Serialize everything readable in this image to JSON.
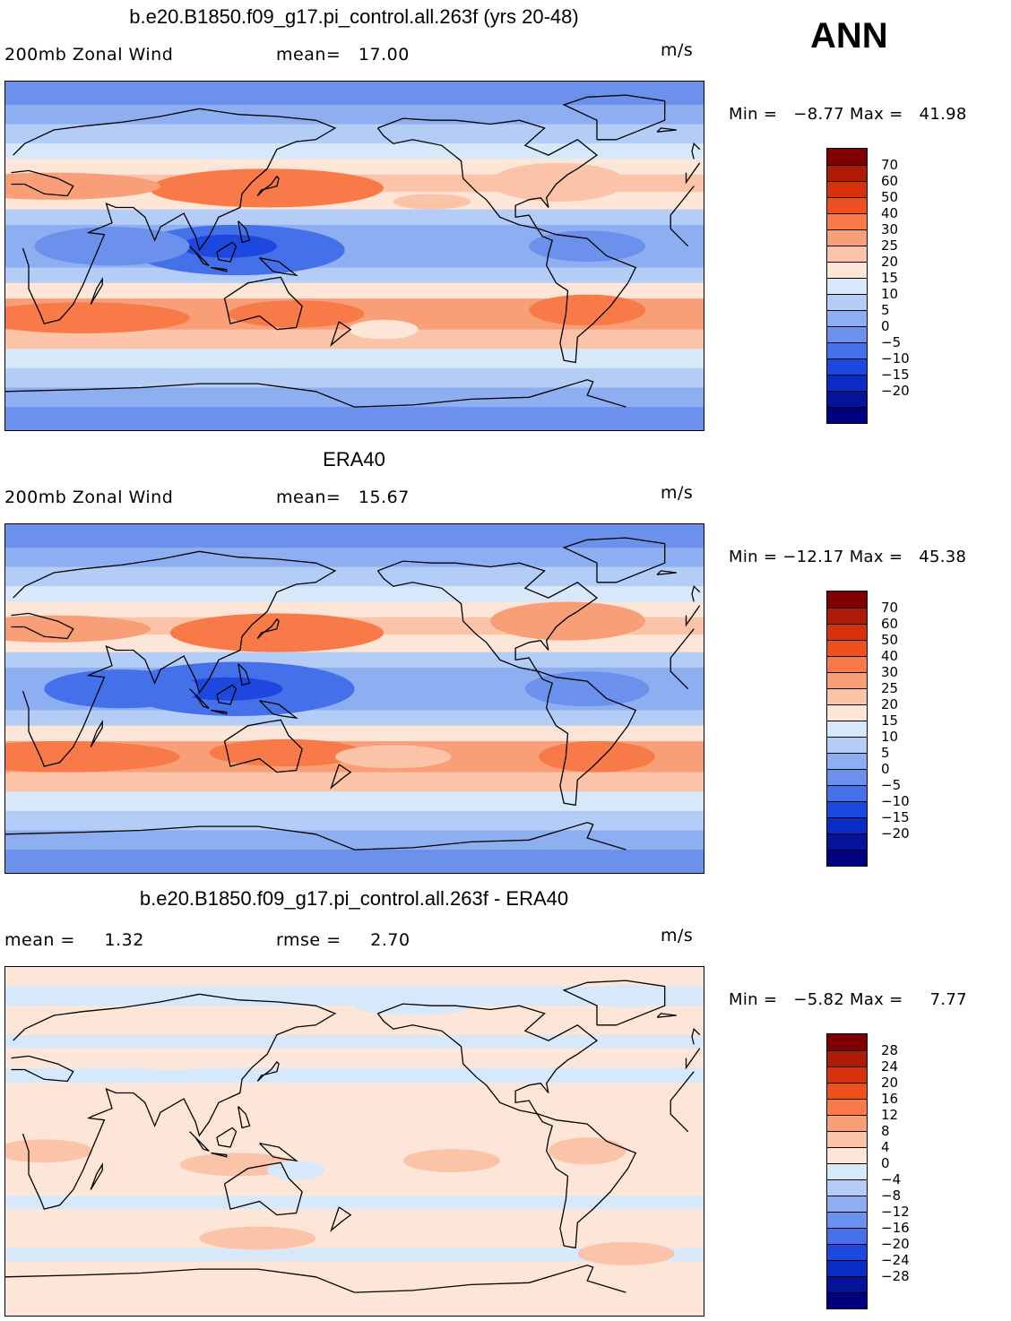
{
  "season": "ANN",
  "panels": [
    {
      "title": "b.e20.B1850.f09_g17.pi_control.all.263f (yrs 20-48)",
      "left_text": "200mb Zonal Wind",
      "center_text": "mean=   17.00",
      "units": "m/s",
      "minmax": "Min =   −8.77 Max =   41.98",
      "scale": "abs",
      "bands": [
        {
          "lat0": 90,
          "lat1": 78,
          "value": -4
        },
        {
          "lat0": 78,
          "lat1": 68,
          "value": 3
        },
        {
          "lat0": 68,
          "lat1": 58,
          "value": 8
        },
        {
          "lat0": 58,
          "lat1": 50,
          "value": 13
        },
        {
          "lat0": 50,
          "lat1": 42,
          "value": 18
        },
        {
          "lat0": 42,
          "lat1": 33,
          "value": 23
        },
        {
          "lat0": 33,
          "lat1": 24,
          "value": 17
        },
        {
          "lat0": 24,
          "lat1": 16,
          "value": 8
        },
        {
          "lat0": 16,
          "lat1": 4,
          "value": 2
        },
        {
          "lat0": 4,
          "lat1": -6,
          "value": 2
        },
        {
          "lat0": -6,
          "lat1": -14,
          "value": 9
        },
        {
          "lat0": -14,
          "lat1": -22,
          "value": 19
        },
        {
          "lat0": -22,
          "lat1": -38,
          "value": 27
        },
        {
          "lat0": -38,
          "lat1": -48,
          "value": 24
        },
        {
          "lat0": -48,
          "lat1": -58,
          "value": 14
        },
        {
          "lat0": -58,
          "lat1": -68,
          "value": 8
        },
        {
          "lat0": -68,
          "lat1": -78,
          "value": 3
        },
        {
          "lat0": -78,
          "lat1": -90,
          "value": -2
        }
      ],
      "blobs": [
        {
          "lon": 135,
          "lat": 35,
          "w": 60,
          "h": 10,
          "value": 37
        },
        {
          "lon": 110,
          "lat": 34,
          "w": 35,
          "h": 7,
          "value": 32
        },
        {
          "lon": 120,
          "lat": 3,
          "w": 55,
          "h": 13,
          "value": -7
        },
        {
          "lon": 115,
          "lat": 5,
          "w": 25,
          "h": 6,
          "value": -11
        },
        {
          "lon": 55,
          "lat": 5,
          "w": 40,
          "h": 10,
          "value": -5
        },
        {
          "lon": -60,
          "lat": 5,
          "w": 30,
          "h": 8,
          "value": -3
        },
        {
          "lon": 25,
          "lat": 36,
          "w": 55,
          "h": 7,
          "value": 26
        },
        {
          "lon": -75,
          "lat": 38,
          "w": 35,
          "h": 10,
          "value": 23
        },
        {
          "lon": -140,
          "lat": 28,
          "w": 20,
          "h": 4,
          "value": 24
        },
        {
          "lon": 150,
          "lat": -30,
          "w": 35,
          "h": 7,
          "value": 31
        },
        {
          "lon": 40,
          "lat": -32,
          "w": 55,
          "h": 8,
          "value": 32
        },
        {
          "lon": -60,
          "lat": -28,
          "w": 30,
          "h": 8,
          "value": 33
        },
        {
          "lon": -165,
          "lat": -38,
          "w": 18,
          "h": 5,
          "value": 17
        }
      ],
      "colorbar": {
        "colors": [
          "#7f0000",
          "#ae1b07",
          "#d7300c",
          "#f0501e",
          "#f77a48",
          "#f99f78",
          "#fbc3a8",
          "#fde6d8",
          "#d8e8fb",
          "#b4cdf6",
          "#8daff1",
          "#6b91ec",
          "#4470ea",
          "#1d48e0",
          "#0a2bc4",
          "#04139a",
          "#000080"
        ],
        "labels": [
          "70",
          "60",
          "50",
          "40",
          "30",
          "25",
          "20",
          "15",
          "10",
          "5",
          "0",
          "−5",
          "−10",
          "−15",
          "−20"
        ]
      }
    },
    {
      "title": "ERA40",
      "left_text": "200mb Zonal Wind",
      "center_text": "mean=   15.67",
      "units": "m/s",
      "minmax": "Min = −12.17 Max =   45.38",
      "scale": "abs",
      "bands": [
        {
          "lat0": 90,
          "lat1": 78,
          "value": -3
        },
        {
          "lat0": 78,
          "lat1": 68,
          "value": 2
        },
        {
          "lat0": 68,
          "lat1": 58,
          "value": 7
        },
        {
          "lat0": 58,
          "lat1": 50,
          "value": 12
        },
        {
          "lat0": 50,
          "lat1": 42,
          "value": 17
        },
        {
          "lat0": 42,
          "lat1": 33,
          "value": 22
        },
        {
          "lat0": 33,
          "lat1": 24,
          "value": 17
        },
        {
          "lat0": 24,
          "lat1": 16,
          "value": 7
        },
        {
          "lat0": 16,
          "lat1": 4,
          "value": 1
        },
        {
          "lat0": 4,
          "lat1": -6,
          "value": 1
        },
        {
          "lat0": -6,
          "lat1": -14,
          "value": 8
        },
        {
          "lat0": -14,
          "lat1": -22,
          "value": 18
        },
        {
          "lat0": -22,
          "lat1": -38,
          "value": 26
        },
        {
          "lat0": -38,
          "lat1": -48,
          "value": 22
        },
        {
          "lat0": -48,
          "lat1": -58,
          "value": 12
        },
        {
          "lat0": -58,
          "lat1": -68,
          "value": 7
        },
        {
          "lat0": -68,
          "lat1": -78,
          "value": 2
        },
        {
          "lat0": -78,
          "lat1": -90,
          "value": -2
        }
      ],
      "blobs": [
        {
          "lon": 140,
          "lat": 34,
          "w": 55,
          "h": 10,
          "value": 38
        },
        {
          "lon": 25,
          "lat": 36,
          "w": 50,
          "h": 7,
          "value": 27
        },
        {
          "lon": 120,
          "lat": 5,
          "w": 60,
          "h": 14,
          "value": -8
        },
        {
          "lon": 115,
          "lat": 5,
          "w": 28,
          "h": 6,
          "value": -12
        },
        {
          "lon": 60,
          "lat": 5,
          "w": 40,
          "h": 10,
          "value": -6
        },
        {
          "lon": -60,
          "lat": 5,
          "w": 32,
          "h": 9,
          "value": -5
        },
        {
          "lon": -70,
          "lat": 40,
          "w": 40,
          "h": 10,
          "value": 25
        },
        {
          "lon": 30,
          "lat": -30,
          "w": 60,
          "h": 8,
          "value": 31
        },
        {
          "lon": 145,
          "lat": -28,
          "w": 40,
          "h": 7,
          "value": 32
        },
        {
          "lon": -55,
          "lat": -30,
          "w": 30,
          "h": 8,
          "value": 31
        },
        {
          "lon": -160,
          "lat": -30,
          "w": 30,
          "h": 6,
          "value": 21
        }
      ],
      "colorbar": {
        "colors": [
          "#7f0000",
          "#ae1b07",
          "#d7300c",
          "#f0501e",
          "#f77a48",
          "#f99f78",
          "#fbc3a8",
          "#fde6d8",
          "#d8e8fb",
          "#b4cdf6",
          "#8daff1",
          "#6b91ec",
          "#4470ea",
          "#1d48e0",
          "#0a2bc4",
          "#04139a",
          "#000080"
        ],
        "labels": [
          "70",
          "60",
          "50",
          "40",
          "30",
          "25",
          "20",
          "15",
          "10",
          "5",
          "0",
          "−5",
          "−10",
          "−15",
          "−20"
        ]
      }
    },
    {
      "title": "b.e20.B1850.f09_g17.pi_control.all.263f - ERA40",
      "left_text": "mean =     1.32",
      "center_text": "rmse =     2.70",
      "units": "m/s",
      "minmax": "Min =   −5.82 Max =     7.77",
      "scale": "diff",
      "bands": [
        {
          "lat0": 90,
          "lat1": 80,
          "value": 2
        },
        {
          "lat0": 80,
          "lat1": 70,
          "value": -1
        },
        {
          "lat0": 70,
          "lat1": 55,
          "value": 2
        },
        {
          "lat0": 55,
          "lat1": 48,
          "value": -1
        },
        {
          "lat0": 48,
          "lat1": 38,
          "value": 2
        },
        {
          "lat0": 38,
          "lat1": 30,
          "value": -1
        },
        {
          "lat0": 30,
          "lat1": 10,
          "value": 2
        },
        {
          "lat0": 10,
          "lat1": -20,
          "value": 2
        },
        {
          "lat0": -20,
          "lat1": -28,
          "value": 2
        },
        {
          "lat0": -28,
          "lat1": -35,
          "value": -1
        },
        {
          "lat0": -35,
          "lat1": -55,
          "value": 2
        },
        {
          "lat0": -55,
          "lat1": -62,
          "value": -1
        },
        {
          "lat0": -62,
          "lat1": -90,
          "value": 2
        }
      ],
      "blobs": [
        {
          "lon": -150,
          "lat": 70,
          "w": 30,
          "h": 5,
          "value": -2
        },
        {
          "lon": -40,
          "lat": 75,
          "w": 20,
          "h": 6,
          "value": -2
        },
        {
          "lon": 85,
          "lat": 42,
          "w": 25,
          "h": 5,
          "value": 2
        },
        {
          "lon": 20,
          "lat": -5,
          "w": 25,
          "h": 6,
          "value": 6
        },
        {
          "lon": -130,
          "lat": -10,
          "w": 25,
          "h": 6,
          "value": 5
        },
        {
          "lon": 120,
          "lat": -12,
          "w": 30,
          "h": 6,
          "value": 5
        },
        {
          "lon": -60,
          "lat": -5,
          "w": 20,
          "h": 7,
          "value": 5
        },
        {
          "lon": 130,
          "lat": -50,
          "w": 30,
          "h": 6,
          "value": 5
        },
        {
          "lon": -40,
          "lat": -58,
          "w": 25,
          "h": 6,
          "value": 5
        },
        {
          "lon": 150,
          "lat": -15,
          "w": 15,
          "h": 5,
          "value": -2
        }
      ],
      "colorbar": {
        "colors": [
          "#7f0000",
          "#ae1b07",
          "#d7300c",
          "#f0501e",
          "#f77a48",
          "#f99f78",
          "#fbc3a8",
          "#fde6d8",
          "#d8e8fb",
          "#b4cdf6",
          "#8daff1",
          "#6b91ec",
          "#4470ea",
          "#1d48e0",
          "#0a2bc4",
          "#04139a",
          "#000080"
        ],
        "labels": [
          "28",
          "24",
          "20",
          "16",
          "12",
          "8",
          "4",
          "0",
          "−4",
          "−8",
          "−12",
          "−16",
          "−20",
          "−24",
          "−28"
        ]
      }
    }
  ],
  "coastlines": [
    [
      [
        10,
        58
      ],
      [
        25,
        65
      ],
      [
        40,
        67
      ],
      [
        60,
        69
      ],
      [
        80,
        72
      ],
      [
        100,
        76
      ],
      [
        120,
        73
      ],
      [
        140,
        72
      ],
      [
        160,
        70
      ],
      [
        170,
        66
      ],
      [
        160,
        60
      ],
      [
        150,
        59
      ],
      [
        140,
        55
      ],
      [
        135,
        45
      ],
      [
        127,
        38
      ],
      [
        122,
        32
      ],
      [
        121,
        25
      ],
      [
        110,
        20
      ],
      [
        105,
        10
      ],
      [
        100,
        3
      ],
      [
        98,
        10
      ],
      [
        92,
        22
      ],
      [
        80,
        15
      ],
      [
        77,
        8
      ],
      [
        72,
        20
      ],
      [
        66,
        25
      ],
      [
        57,
        25
      ],
      [
        52,
        27
      ],
      [
        55,
        17
      ],
      [
        45,
        13
      ],
      [
        43,
        12
      ],
      [
        51,
        11
      ],
      [
        40,
        -15
      ],
      [
        35,
        -25
      ],
      [
        28,
        -33
      ],
      [
        20,
        -35
      ],
      [
        18,
        -30
      ],
      [
        12,
        -17
      ],
      [
        12,
        -5
      ],
      [
        9,
        4
      ],
      [
        -8,
        5
      ],
      [
        -17,
        14
      ],
      [
        -17,
        21
      ],
      [
        -9,
        31
      ],
      [
        -5,
        36
      ],
      [
        3,
        37
      ],
      [
        10,
        37
      ],
      [
        20,
        32
      ],
      [
        32,
        31
      ],
      [
        35,
        36
      ],
      [
        27,
        40
      ],
      [
        12,
        44
      ],
      [
        3,
        43
      ],
      [
        -9,
        43
      ],
      [
        -9,
        38
      ],
      [
        -2,
        48
      ],
      [
        4,
        52
      ],
      [
        8,
        56
      ],
      [
        10,
        58
      ]
    ],
    [
      [
        113,
        -22
      ],
      [
        125,
        -14
      ],
      [
        136,
        -12
      ],
      [
        142,
        -11
      ],
      [
        146,
        -19
      ],
      [
        153,
        -26
      ],
      [
        150,
        -37
      ],
      [
        140,
        -38
      ],
      [
        131,
        -31
      ],
      [
        116,
        -35
      ],
      [
        114,
        -26
      ],
      [
        113,
        -22
      ]
    ],
    [
      [
        -168,
        66
      ],
      [
        -155,
        71
      ],
      [
        -140,
        70
      ],
      [
        -128,
        70
      ],
      [
        -110,
        68
      ],
      [
        -95,
        70
      ],
      [
        -82,
        66
      ],
      [
        -92,
        57
      ],
      [
        -80,
        52
      ],
      [
        -65,
        60
      ],
      [
        -55,
        52
      ],
      [
        -65,
        45
      ],
      [
        -70,
        42
      ],
      [
        -76,
        37
      ],
      [
        -81,
        30
      ],
      [
        -80,
        25
      ],
      [
        -84,
        30
      ],
      [
        -90,
        29
      ],
      [
        -97,
        26
      ],
      [
        -97,
        20
      ],
      [
        -90,
        21
      ],
      [
        -87,
        16
      ],
      [
        -83,
        10
      ],
      [
        -78,
        8
      ],
      [
        -80,
        1
      ],
      [
        -81,
        -5
      ],
      [
        -76,
        -14
      ],
      [
        -70,
        -18
      ],
      [
        -71,
        -30
      ],
      [
        -74,
        -45
      ],
      [
        -72,
        -54
      ],
      [
        -66,
        -55
      ],
      [
        -65,
        -42
      ],
      [
        -57,
        -35
      ],
      [
        -48,
        -26
      ],
      [
        -39,
        -14
      ],
      [
        -35,
        -6
      ],
      [
        -50,
        0
      ],
      [
        -60,
        9
      ],
      [
        -76,
        11
      ],
      [
        -85,
        14
      ],
      [
        -95,
        16
      ],
      [
        -105,
        20
      ],
      [
        -112,
        29
      ],
      [
        -117,
        33
      ],
      [
        -124,
        40
      ],
      [
        -125,
        49
      ],
      [
        -135,
        57
      ],
      [
        -150,
        60
      ],
      [
        -160,
        58
      ],
      [
        -165,
        62
      ],
      [
        -168,
        66
      ]
    ],
    [
      [
        -55,
        60
      ],
      [
        -45,
        60
      ],
      [
        -20,
        70
      ],
      [
        -20,
        80
      ],
      [
        -40,
        83
      ],
      [
        -60,
        82
      ],
      [
        -72,
        78
      ],
      [
        -55,
        70
      ],
      [
        -55,
        60
      ]
    ],
    [
      [
        -180,
        -78
      ],
      [
        -150,
        -77
      ],
      [
        -120,
        -74
      ],
      [
        -90,
        -73
      ],
      [
        -60,
        -64
      ],
      [
        -57,
        -65
      ],
      [
        -60,
        -72
      ],
      [
        -40,
        -78
      ],
      [
        0,
        -70
      ],
      [
        40,
        -69
      ],
      [
        70,
        -68
      ],
      [
        100,
        -66
      ],
      [
        130,
        -66
      ],
      [
        160,
        -70
      ],
      [
        180,
        -78
      ]
    ],
    [
      [
        130,
        31
      ],
      [
        132,
        34
      ],
      [
        136,
        35
      ],
      [
        140,
        36
      ],
      [
        141,
        40
      ],
      [
        140,
        41
      ],
      [
        137,
        37
      ],
      [
        133,
        34
      ],
      [
        130,
        31
      ]
    ],
    [
      [
        95,
        5
      ],
      [
        100,
        0
      ],
      [
        105,
        -5
      ],
      [
        102,
        -4
      ],
      [
        98,
        2
      ],
      [
        95,
        5
      ]
    ],
    [
      [
        109,
        2
      ],
      [
        117,
        7
      ],
      [
        119,
        5
      ],
      [
        116,
        -3
      ],
      [
        110,
        -2
      ],
      [
        109,
        2
      ]
    ],
    [
      [
        131,
        -1
      ],
      [
        141,
        -3
      ],
      [
        150,
        -10
      ],
      [
        143,
        -9
      ],
      [
        138,
        -8
      ],
      [
        131,
        -1
      ]
    ],
    [
      [
        44,
        -25
      ],
      [
        50,
        -15
      ],
      [
        50,
        -12
      ],
      [
        47,
        -17
      ],
      [
        44,
        -25
      ]
    ],
    [
      [
        -5,
        50
      ],
      [
        1,
        51
      ],
      [
        -2,
        55
      ],
      [
        -5,
        58
      ],
      [
        -6,
        54
      ],
      [
        -5,
        50
      ]
    ],
    [
      [
        172,
        -34
      ],
      [
        178,
        -38
      ],
      [
        174,
        -41
      ],
      [
        168,
        -46
      ],
      [
        172,
        -34
      ]
    ],
    [
      [
        120,
        18
      ],
      [
        124,
        14
      ],
      [
        126,
        8
      ],
      [
        122,
        7
      ],
      [
        120,
        18
      ]
    ],
    [
      [
        106,
        -6
      ],
      [
        114,
        -8
      ],
      [
        114,
        -7
      ],
      [
        106,
        -6
      ]
    ],
    [
      [
        -24,
        64
      ],
      [
        -14,
        65
      ],
      [
        -22,
        66
      ],
      [
        -24,
        64
      ]
    ]
  ]
}
